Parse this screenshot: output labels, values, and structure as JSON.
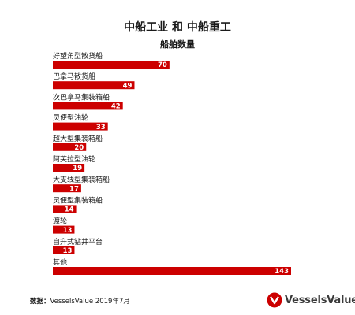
{
  "chart_data": {
    "type": "bar",
    "orientation": "horizontal",
    "title": "中船工业 和 中船重工",
    "subtitle": "船舶数量",
    "categories": [
      "好望角型散货船",
      "巴拿马散货船",
      "次巴拿马集装箱船",
      "灵便型油轮",
      "超大型集装箱船",
      "阿芙拉型油轮",
      "大支线型集装箱船",
      "灵便型集装箱船",
      "渡轮",
      "自升式钻井平台",
      "其他"
    ],
    "values": [
      70,
      49,
      42,
      33,
      20,
      19,
      17,
      14,
      13,
      13,
      143
    ],
    "xlim": [
      0,
      143
    ],
    "bar_color": "#cc0000",
    "grid": false,
    "legend": false
  },
  "footer": {
    "source_label": "数据：",
    "source_text": "VesselsValue 2019年7月"
  },
  "brand": {
    "name": "VesselsValue",
    "color": "#cc0000"
  }
}
